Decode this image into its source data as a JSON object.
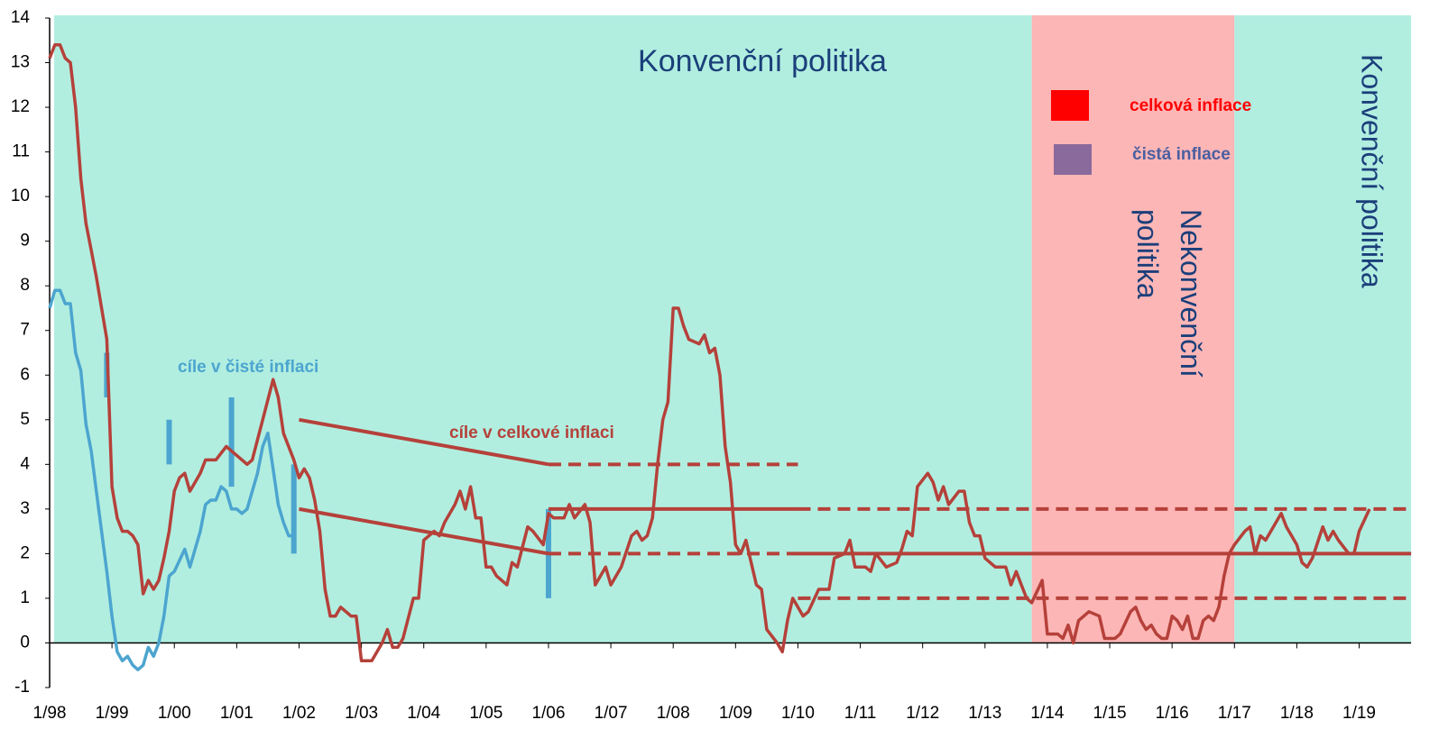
{
  "chart_data": {
    "type": "line",
    "xlim": [
      "1998-01",
      "2019-11"
    ],
    "ylim": [
      -1,
      14
    ],
    "yticks": [
      -1,
      0,
      1,
      2,
      3,
      4,
      5,
      6,
      7,
      8,
      9,
      10,
      11,
      12,
      13,
      14
    ],
    "xticks": [
      {
        "value": "1998-01",
        "label": "1/98"
      },
      {
        "value": "1999-01",
        "label": "1/99"
      },
      {
        "value": "2000-01",
        "label": "1/00"
      },
      {
        "value": "2001-01",
        "label": "1/01"
      },
      {
        "value": "2002-01",
        "label": "1/02"
      },
      {
        "value": "2003-01",
        "label": "1/03"
      },
      {
        "value": "2004-01",
        "label": "1/04"
      },
      {
        "value": "2005-01",
        "label": "1/05"
      },
      {
        "value": "2006-01",
        "label": "1/06"
      },
      {
        "value": "2007-01",
        "label": "1/07"
      },
      {
        "value": "2008-01",
        "label": "1/08"
      },
      {
        "value": "2009-01",
        "label": "1/09"
      },
      {
        "value": "2010-01",
        "label": "1/10"
      },
      {
        "value": "2011-01",
        "label": "1/11"
      },
      {
        "value": "2012-01",
        "label": "1/12"
      },
      {
        "value": "2013-01",
        "label": "1/13"
      },
      {
        "value": "2014-01",
        "label": "1/14"
      },
      {
        "value": "2015-01",
        "label": "1/15"
      },
      {
        "value": "2016-01",
        "label": "1/16"
      },
      {
        "value": "2017-01",
        "label": "1/17"
      },
      {
        "value": "2018-01",
        "label": "1/18"
      },
      {
        "value": "2019-01",
        "label": "1/19"
      }
    ],
    "regions": [
      {
        "x": [
          "1998-01",
          "2013-10"
        ],
        "color": "#b1eee0"
      },
      {
        "x": [
          "2013-10",
          "2017-01"
        ],
        "color": "#fdb6b6"
      },
      {
        "x": [
          "2017-01",
          "2019-11"
        ],
        "color": "#b1eee0"
      }
    ],
    "series": [
      {
        "name": "celková inflace",
        "color": "#b5413a",
        "legend_color": "#ff0000",
        "x": [
          "1998-01",
          "1998-02",
          "1998-03",
          "1998-04",
          "1998-05",
          "1998-06",
          "1998-07",
          "1998-08",
          "1998-09",
          "1998-10",
          "1998-11",
          "1998-12",
          "1999-01",
          "1999-02",
          "1999-03",
          "1999-04",
          "1999-05",
          "1999-06",
          "1999-07",
          "1999-08",
          "1999-09",
          "1999-10",
          "1999-11",
          "1999-12",
          "2000-01",
          "2000-02",
          "2000-03",
          "2000-04",
          "2000-06",
          "2000-07",
          "2000-09",
          "2000-11",
          "2001-01",
          "2001-03",
          "2001-04",
          "2001-06",
          "2001-08",
          "2001-09",
          "2001-10",
          "2001-12",
          "2002-01",
          "2002-02",
          "2002-03",
          "2002-04",
          "2002-05",
          "2002-06",
          "2002-07",
          "2002-08",
          "2002-09",
          "2002-11",
          "2002-12",
          "2003-01",
          "2003-03",
          "2003-05",
          "2003-06",
          "2003-07",
          "2003-08",
          "2003-09",
          "2003-11",
          "2003-12",
          "2004-01",
          "2004-03",
          "2004-04",
          "2004-05",
          "2004-07",
          "2004-08",
          "2004-09",
          "2004-10",
          "2004-11",
          "2004-12",
          "2005-01",
          "2005-02",
          "2005-03",
          "2005-05",
          "2005-06",
          "2005-07",
          "2005-09",
          "2005-10",
          "2005-12",
          "2006-01",
          "2006-02",
          "2006-04",
          "2006-05",
          "2006-06",
          "2006-08",
          "2006-09",
          "2006-10",
          "2006-12",
          "2007-01",
          "2007-03",
          "2007-05",
          "2007-06",
          "2007-07",
          "2007-08",
          "2007-09",
          "2007-10",
          "2007-11",
          "2007-12",
          "2008-01",
          "2008-02",
          "2008-03",
          "2008-04",
          "2008-06",
          "2008-07",
          "2008-08",
          "2008-09",
          "2008-10",
          "2008-11",
          "2008-12",
          "2009-01",
          "2009-02",
          "2009-03",
          "2009-05",
          "2009-06",
          "2009-07",
          "2009-09",
          "2009-10",
          "2009-11",
          "2009-12",
          "2010-02",
          "2010-03",
          "2010-05",
          "2010-07",
          "2010-08",
          "2010-10",
          "2010-11",
          "2010-12",
          "2011-02",
          "2011-03",
          "2011-04",
          "2011-06",
          "2011-08",
          "2011-09",
          "2011-10",
          "2011-11",
          "2011-12",
          "2012-02",
          "2012-03",
          "2012-04",
          "2012-05",
          "2012-06",
          "2012-08",
          "2012-09",
          "2012-10",
          "2012-11",
          "2012-12",
          "2013-01",
          "2013-03",
          "2013-05",
          "2013-06",
          "2013-07",
          "2013-08",
          "2013-09",
          "2013-10",
          "2013-12",
          "2014-01",
          "2014-03",
          "2014-04",
          "2014-05",
          "2014-06",
          "2014-07",
          "2014-09",
          "2014-11",
          "2014-12",
          "2015-02",
          "2015-03",
          "2015-05",
          "2015-06",
          "2015-07",
          "2015-08",
          "2015-09",
          "2015-10",
          "2015-11",
          "2015-12",
          "2016-01",
          "2016-02",
          "2016-03",
          "2016-04",
          "2016-05",
          "2016-06",
          "2016-07",
          "2016-08",
          "2016-09",
          "2016-10",
          "2016-11",
          "2016-12",
          "2017-01",
          "2017-03",
          "2017-04",
          "2017-05",
          "2017-06",
          "2017-07",
          "2017-08",
          "2017-10",
          "2017-11",
          "2018-01",
          "2018-02",
          "2018-03",
          "2018-04",
          "2018-06",
          "2018-07",
          "2018-08",
          "2018-09",
          "2018-11",
          "2018-12",
          "2019-01",
          "2019-03"
        ],
        "values": [
          13.1,
          13.4,
          13.4,
          13.1,
          13.0,
          12.0,
          10.4,
          9.4,
          8.8,
          8.2,
          7.5,
          6.8,
          3.5,
          2.8,
          2.5,
          2.5,
          2.4,
          2.2,
          1.1,
          1.4,
          1.2,
          1.4,
          1.9,
          2.5,
          3.4,
          3.7,
          3.8,
          3.4,
          3.8,
          4.1,
          4.1,
          4.4,
          4.2,
          4.0,
          4.1,
          5.0,
          5.9,
          5.5,
          4.7,
          4.1,
          3.7,
          3.9,
          3.7,
          3.2,
          2.5,
          1.2,
          0.6,
          0.6,
          0.8,
          0.6,
          0.6,
          -0.4,
          -0.4,
          0.0,
          0.3,
          -0.1,
          -0.1,
          0.1,
          1.0,
          1.0,
          2.3,
          2.5,
          2.4,
          2.7,
          3.1,
          3.4,
          3.0,
          3.5,
          2.8,
          2.8,
          1.7,
          1.7,
          1.5,
          1.3,
          1.8,
          1.7,
          2.6,
          2.5,
          2.2,
          2.9,
          2.8,
          2.8,
          3.1,
          2.8,
          3.1,
          2.7,
          1.3,
          1.7,
          1.3,
          1.7,
          2.4,
          2.5,
          2.3,
          2.4,
          2.8,
          4.0,
          5.0,
          5.4,
          7.5,
          7.5,
          7.1,
          6.8,
          6.7,
          6.9,
          6.5,
          6.6,
          6.0,
          4.4,
          3.6,
          2.2,
          2.0,
          2.3,
          1.3,
          1.2,
          0.3,
          0.0,
          -0.2,
          0.5,
          1.0,
          0.6,
          0.7,
          1.2,
          1.2,
          1.9,
          2.0,
          2.3,
          1.7,
          1.7,
          1.6,
          2.0,
          1.7,
          1.8,
          2.1,
          2.5,
          2.4,
          3.5,
          3.8,
          3.6,
          3.2,
          3.5,
          3.1,
          3.4,
          3.4,
          2.7,
          2.4,
          2.4,
          1.9,
          1.7,
          1.7,
          1.3,
          1.6,
          1.3,
          1.0,
          0.9,
          1.4,
          0.2,
          0.2,
          0.1,
          0.4,
          0.0,
          0.5,
          0.7,
          0.6,
          0.1,
          0.1,
          0.2,
          0.7,
          0.8,
          0.5,
          0.3,
          0.4,
          0.2,
          0.1,
          0.1,
          0.6,
          0.5,
          0.3,
          0.6,
          0.1,
          0.1,
          0.5,
          0.6,
          0.5,
          0.8,
          1.5,
          2.0,
          2.2,
          2.5,
          2.6,
          2.0,
          2.4,
          2.3,
          2.5,
          2.9,
          2.6,
          2.2,
          1.8,
          1.7,
          1.9,
          2.6,
          2.3,
          2.5,
          2.3,
          2.0,
          2.0,
          2.5,
          3.0
        ]
      },
      {
        "name": "čistá inflace",
        "color": "#4ca5cf",
        "legend_color": "#8a6a9c",
        "x": [
          "1998-01",
          "1998-02",
          "1998-03",
          "1998-04",
          "1998-05",
          "1998-06",
          "1998-07",
          "1998-08",
          "1998-09",
          "1998-10",
          "1998-11",
          "1998-12",
          "1999-01",
          "1999-02",
          "1999-03",
          "1999-04",
          "1999-05",
          "1999-06",
          "1999-07",
          "1999-08",
          "1999-09",
          "1999-10",
          "1999-11",
          "1999-12",
          "2000-01",
          "2000-03",
          "2000-04",
          "2000-06",
          "2000-07",
          "2000-08",
          "2000-09",
          "2000-10",
          "2000-11",
          "2000-12",
          "2001-01",
          "2001-02",
          "2001-03",
          "2001-05",
          "2001-06",
          "2001-07",
          "2001-08",
          "2001-09",
          "2001-10",
          "2001-11",
          "2001-12"
        ],
        "values": [
          7.5,
          7.9,
          7.9,
          7.6,
          7.6,
          6.5,
          6.1,
          4.9,
          4.3,
          3.4,
          2.5,
          1.6,
          0.6,
          -0.2,
          -0.4,
          -0.3,
          -0.5,
          -0.6,
          -0.5,
          -0.1,
          -0.3,
          0.0,
          0.6,
          1.5,
          1.6,
          2.1,
          1.7,
          2.5,
          3.1,
          3.2,
          3.2,
          3.5,
          3.4,
          3.0,
          3.0,
          2.9,
          3.0,
          3.8,
          4.4,
          4.7,
          3.9,
          3.1,
          2.7,
          2.4,
          2.4
        ]
      }
    ],
    "targets": [
      {
        "x": [
          "1998-12",
          "1998-12"
        ],
        "values": [
          5.5,
          6.5
        ],
        "style": "solid",
        "color": "#4ca5cf"
      },
      {
        "x": [
          "1999-12",
          "1999-12"
        ],
        "values": [
          4,
          5
        ],
        "style": "solid",
        "color": "#4ca5cf"
      },
      {
        "x": [
          "2000-12",
          "2000-12"
        ],
        "values": [
          3.5,
          5.5
        ],
        "style": "solid",
        "color": "#4ca5cf"
      },
      {
        "x": [
          "2001-12",
          "2001-12"
        ],
        "values": [
          2,
          4
        ],
        "style": "solid",
        "color": "#4ca5cf"
      },
      {
        "x": [
          "2006-01",
          "2006-01"
        ],
        "values": [
          1,
          3
        ],
        "style": "solid",
        "color": "#4ca5cf"
      },
      {
        "x": [
          "2002-01",
          "2006-01"
        ],
        "values": [
          5,
          4
        ],
        "style": "solid",
        "color": "#b5413a"
      },
      {
        "x": [
          "2002-01",
          "2006-01"
        ],
        "values": [
          3,
          2
        ],
        "style": "solid",
        "color": "#b5413a"
      },
      {
        "x": [
          "2006-01",
          "2010-01"
        ],
        "values": [
          4,
          4
        ],
        "style": "dashed",
        "color": "#b5413a"
      },
      {
        "x": [
          "2006-01",
          "2010-01"
        ],
        "values": [
          2,
          2
        ],
        "style": "dashed",
        "color": "#b5413a"
      },
      {
        "x": [
          "2006-01",
          "2010-01"
        ],
        "values": [
          3,
          3
        ],
        "style": "solid",
        "color": "#b5413a"
      },
      {
        "x": [
          "2010-01",
          "2019-11"
        ],
        "values": [
          3,
          3
        ],
        "style": "dashed",
        "color": "#b5413a"
      },
      {
        "x": [
          "2010-01",
          "2019-11"
        ],
        "values": [
          1,
          1
        ],
        "style": "dashed",
        "color": "#b5413a"
      },
      {
        "x": [
          "2010-01",
          "2019-11"
        ],
        "values": [
          2,
          2
        ],
        "style": "solid",
        "color": "#b5413a"
      }
    ],
    "annotations": [
      "Konvenční politika",
      "Nekonvenční politika",
      "Konvenční politika",
      "cíle v čisté inflaci",
      "cíle v celkové inflaci"
    ]
  }
}
